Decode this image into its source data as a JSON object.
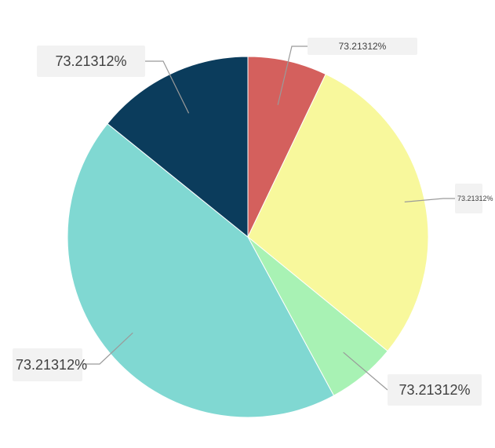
{
  "chart_data": {
    "type": "pie",
    "title": "",
    "slices": [
      {
        "label": "73.21312%",
        "value": 7.1,
        "color": "#d4605d"
      },
      {
        "label": "73.21312%",
        "value": 28.8,
        "color": "#f8f89c"
      },
      {
        "label": "73.21312%",
        "value": 6.2,
        "color": "#a8f2b4"
      },
      {
        "label": "73.21312%",
        "value": 43.7,
        "color": "#80d8d2"
      },
      {
        "label": "73.21312%",
        "value": 14.2,
        "color": "#0b3c5c"
      }
    ],
    "start_angle_deg": 0,
    "direction": "clockwise",
    "legend": "none"
  }
}
